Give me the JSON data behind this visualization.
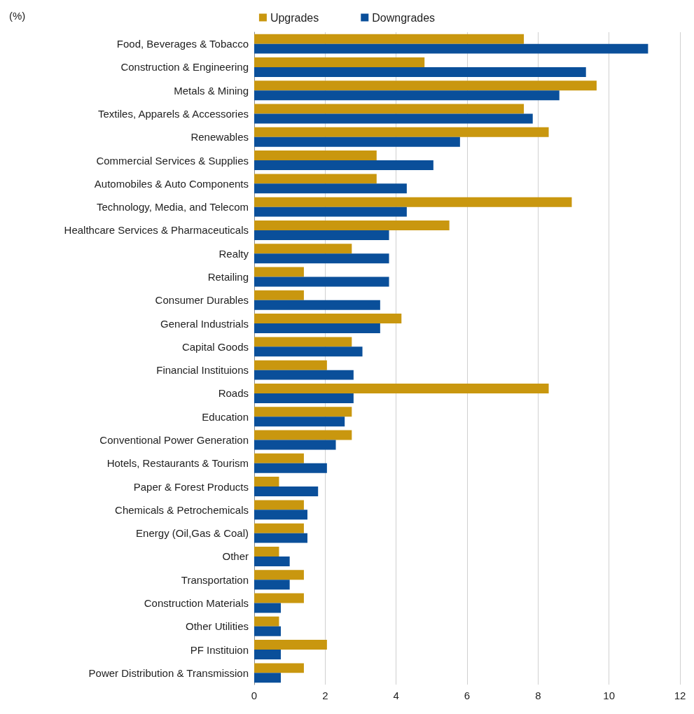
{
  "chart_data": {
    "type": "bar",
    "orientation": "horizontal",
    "xlabel": "(%)",
    "categories": [
      "Food, Beverages & Tobacco",
      "Construction & Engineering",
      "Metals & Mining",
      "Textiles, Apparels & Accessories",
      "Renewables",
      "Commercial Services & Supplies",
      "Automobiles & Auto Components",
      "Technology, Media, and Telecom",
      "Healthcare Services & Pharmaceuticals",
      "Realty",
      "Retailing",
      "Consumer Durables",
      "General Industrials",
      "Capital Goods",
      "Financial Instituions",
      "Roads",
      "Education",
      "Conventional Power Generation",
      "Hotels, Restaurants & Tourism",
      "Paper & Forest Products",
      "Chemicals & Petrochemicals",
      "Energy (Oil,Gas & Coal)",
      "Other",
      "Transportation",
      "Construction Materials",
      "Other Utilities",
      "PF Instituion",
      "Power Distribution & Transmission"
    ],
    "series": [
      {
        "name": "Upgrades",
        "color": "#c9970f",
        "values": [
          7.6,
          4.8,
          9.65,
          7.6,
          8.3,
          3.45,
          3.45,
          8.95,
          5.5,
          2.75,
          1.4,
          1.4,
          4.15,
          2.75,
          2.05,
          8.3,
          2.75,
          2.75,
          1.4,
          0.7,
          1.4,
          1.4,
          0.7,
          1.4,
          1.4,
          0.7,
          2.05,
          1.4
        ]
      },
      {
        "name": "Downgrades",
        "color": "#0a4f9a",
        "values": [
          11.1,
          9.35,
          8.6,
          7.85,
          5.8,
          5.05,
          4.3,
          4.3,
          3.8,
          3.8,
          3.8,
          3.55,
          3.55,
          3.05,
          2.8,
          2.8,
          2.55,
          2.3,
          2.05,
          1.8,
          1.5,
          1.5,
          1.0,
          1.0,
          0.75,
          0.75,
          0.75,
          0.75
        ]
      }
    ],
    "xlim": [
      0,
      12
    ],
    "xticks": [
      0,
      2,
      4,
      6,
      8,
      10,
      12
    ],
    "grid": "x",
    "legend": "top"
  }
}
